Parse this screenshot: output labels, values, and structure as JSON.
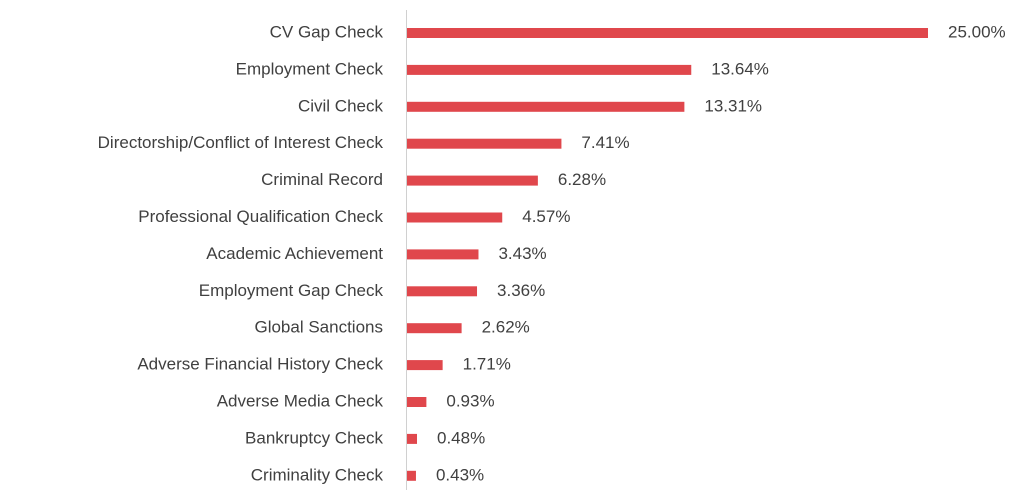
{
  "chart_data": {
    "type": "bar",
    "orientation": "horizontal",
    "color": "#e0474c",
    "categories": [
      "CV Gap Check",
      "Employment Check",
      "Civil Check",
      "Directorship/Conflict of Interest Check",
      "Criminal Record",
      "Professional Qualification Check",
      "Academic Achievement",
      "Employment Gap Check",
      "Global Sanctions",
      "Adverse Financial History Check",
      "Adverse Media Check",
      "Bankruptcy Check",
      "Criminality Check"
    ],
    "values": [
      25,
      13.64,
      13.31,
      7.41,
      6.28,
      4.57,
      3.43,
      3.36,
      2.62,
      1.71,
      0.93,
      0.48,
      0.43
    ],
    "value_labels": [
      "25.00%",
      "13.64%",
      "13.31%",
      "7.41%",
      "6.28%",
      "4.57%",
      "3.43%",
      "3.36%",
      "2.62%",
      "1.71%",
      "0.93%",
      "0.48%",
      "0.43%"
    ]
  }
}
